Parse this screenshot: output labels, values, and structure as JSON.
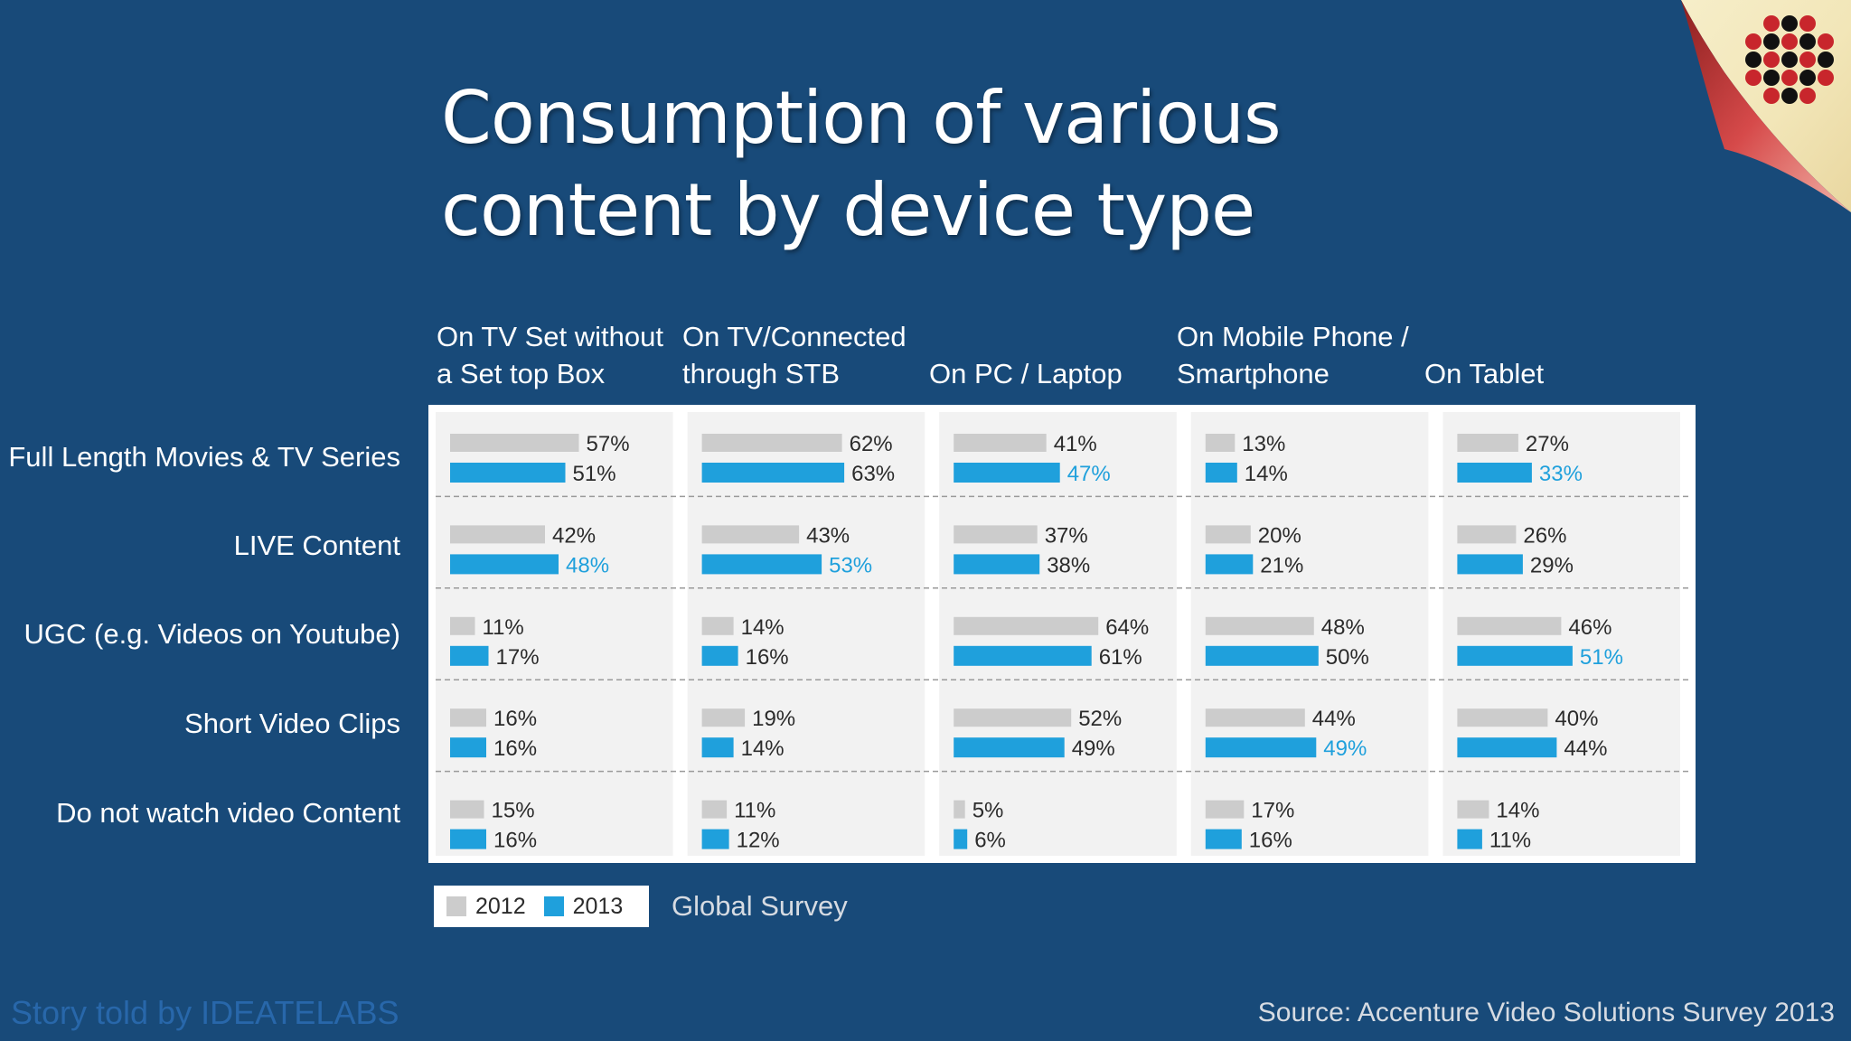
{
  "title": "Consumption of various content by device type",
  "footer": {
    "credit": "Story told by IDEATELABS",
    "source": "Source: Accenture Video Solutions Survey 2013"
  },
  "survey_label": "Global Survey",
  "colors": {
    "background": "#184a79",
    "bar_2012": "#cccccc",
    "bar_2013": "#1fa0dc",
    "highlight_text": "#1fa0dc"
  },
  "icons": {
    "logo": "dotted-flower-logo",
    "corner": "page-curl"
  },
  "chart_data": {
    "type": "bar",
    "title": "Consumption of various content by device type",
    "orientation": "horizontal-small-multiples",
    "columns": [
      {
        "line1": "On TV Set without",
        "line2": "a Set top Box"
      },
      {
        "line1": "On TV/Connected",
        "line2": "through STB"
      },
      {
        "line1": "",
        "line2": "On PC / Laptop"
      },
      {
        "line1": "On Mobile Phone /",
        "line2": "Smartphone"
      },
      {
        "line1": "",
        "line2": "On Tablet"
      }
    ],
    "rows": [
      "Full Length Movies & TV Series",
      "LIVE Content",
      "UGC (e.g. Videos on Youtube)",
      "Short Video Clips",
      "Do not watch video Content"
    ],
    "series": [
      {
        "name": "2012",
        "values": [
          [
            57,
            62,
            41,
            13,
            27
          ],
          [
            42,
            43,
            37,
            20,
            26
          ],
          [
            11,
            14,
            64,
            48,
            46
          ],
          [
            16,
            19,
            52,
            44,
            40
          ],
          [
            15,
            11,
            5,
            17,
            14
          ]
        ]
      },
      {
        "name": "2013",
        "values": [
          [
            51,
            63,
            47,
            14,
            33
          ],
          [
            48,
            53,
            38,
            21,
            29
          ],
          [
            17,
            16,
            61,
            50,
            51
          ],
          [
            16,
            14,
            49,
            49,
            44
          ],
          [
            16,
            12,
            6,
            16,
            11
          ]
        ]
      }
    ],
    "highlighted_2013": [
      [
        false,
        false,
        true,
        false,
        true
      ],
      [
        true,
        true,
        false,
        false,
        false
      ],
      [
        false,
        false,
        false,
        false,
        true
      ],
      [
        false,
        false,
        false,
        true,
        false
      ],
      [
        false,
        false,
        false,
        false,
        false
      ]
    ],
    "legend": [
      "2012",
      "2013"
    ],
    "legend_position": "bottom-left",
    "xlim": [
      0,
      100
    ]
  }
}
